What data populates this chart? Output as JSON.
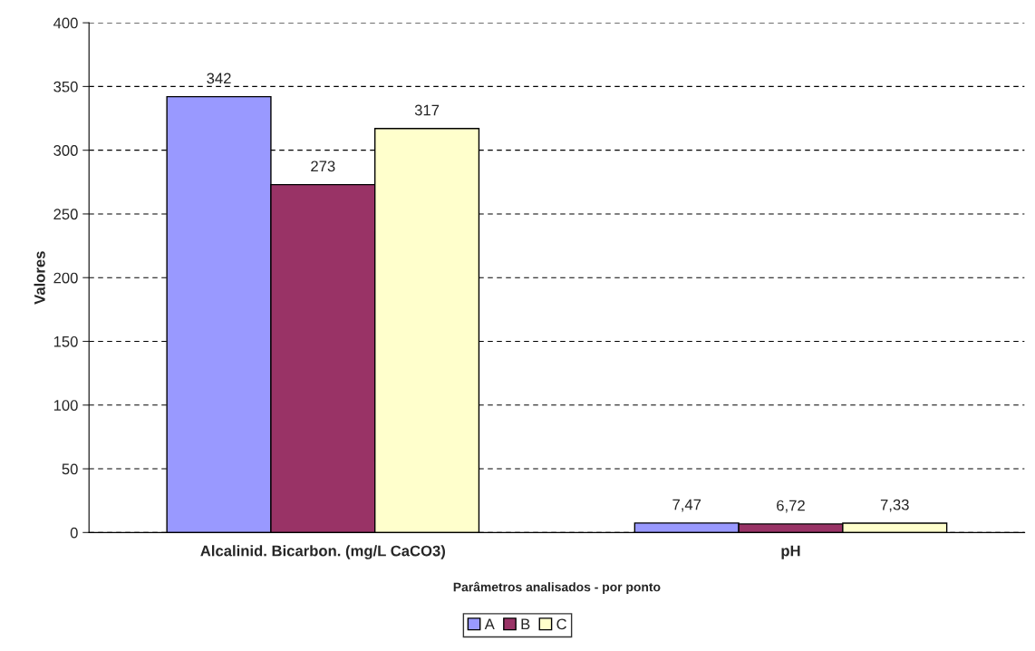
{
  "chart_data": {
    "type": "bar",
    "xlabel": "Parâmetros analisados - por ponto",
    "ylabel": "Valores",
    "categories": [
      "Alcalinid. Bicarbon. (mg/L CaCO3)",
      "pH"
    ],
    "series": [
      {
        "name": "A",
        "color": "#9999ff",
        "values": [
          342,
          7.47
        ],
        "value_labels": [
          "342",
          "7,47"
        ]
      },
      {
        "name": "B",
        "color": "#993366",
        "values": [
          273,
          6.72
        ],
        "value_labels": [
          "273",
          "6,72"
        ]
      },
      {
        "name": "C",
        "color": "#ffffcc",
        "values": [
          317,
          7.33
        ],
        "value_labels": [
          "317",
          "7,33"
        ]
      }
    ],
    "ylim": [
      0,
      400
    ],
    "yticks": [
      0,
      50,
      100,
      150,
      200,
      250,
      300,
      350,
      400
    ],
    "grid": "y",
    "legend": "bottom"
  }
}
